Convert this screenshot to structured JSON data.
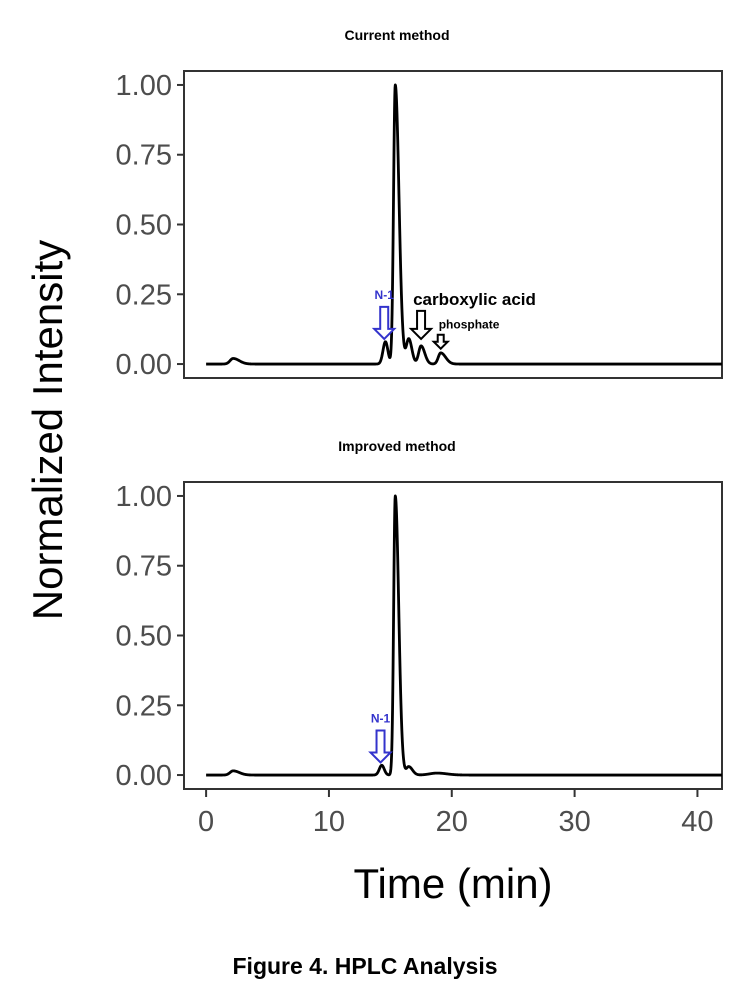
{
  "chart_data": [
    {
      "type": "line",
      "title": "Current method",
      "xlabel": "Time (min)",
      "ylabel": "Normalized Intensity",
      "xlim": [
        -1.8,
        42
      ],
      "ylim": [
        -0.05,
        1.05
      ],
      "yticks": [
        "0.00",
        "0.25",
        "0.50",
        "0.75",
        "1.00"
      ],
      "ytick_values": [
        0,
        0.25,
        0.5,
        0.75,
        1.0
      ],
      "x_range": [
        0,
        42
      ],
      "peaks": [
        {
          "t": 2.2,
          "h": 0.02,
          "wl": 0.25,
          "wr": 0.5
        },
        {
          "t": 14.6,
          "h": 0.08,
          "wl": 0.2,
          "wr": 0.2
        },
        {
          "t": 15.4,
          "h": 1.0,
          "wl": 0.14,
          "wr": 0.3
        },
        {
          "t": 16.5,
          "h": 0.09,
          "wl": 0.2,
          "wr": 0.25
        },
        {
          "t": 17.5,
          "h": 0.065,
          "wl": 0.2,
          "wr": 0.3
        },
        {
          "t": 19.1,
          "h": 0.04,
          "wl": 0.2,
          "wr": 0.4
        }
      ],
      "annotations": [
        {
          "text": "N-1",
          "t": 14.5,
          "y": 0.09,
          "color": "#3333cc",
          "size": "small"
        },
        {
          "text": "carboxylic acid",
          "t": 17.5,
          "y": 0.09,
          "color": "#000000",
          "size": "large"
        },
        {
          "text": "phosphate",
          "t": 19.1,
          "y": 0.055,
          "color": "#000000",
          "size": "small-arrow"
        }
      ]
    },
    {
      "type": "line",
      "title": "Improved method",
      "xlabel": "Time (min)",
      "ylabel": "Normalized Intensity",
      "xlim": [
        -1.8,
        42
      ],
      "ylim": [
        -0.05,
        1.05
      ],
      "yticks": [
        "0.00",
        "0.25",
        "0.50",
        "0.75",
        "1.00"
      ],
      "ytick_values": [
        0,
        0.25,
        0.5,
        0.75,
        1.0
      ],
      "xticks": [
        "0",
        "10",
        "20",
        "30",
        "40"
      ],
      "xtick_values": [
        0,
        10,
        20,
        30,
        40
      ],
      "x_range": [
        0,
        42
      ],
      "peaks": [
        {
          "t": 2.2,
          "h": 0.015,
          "wl": 0.25,
          "wr": 0.5
        },
        {
          "t": 14.3,
          "h": 0.035,
          "wl": 0.2,
          "wr": 0.2
        },
        {
          "t": 15.4,
          "h": 1.0,
          "wl": 0.13,
          "wr": 0.28
        },
        {
          "t": 16.5,
          "h": 0.03,
          "wl": 0.2,
          "wr": 0.3
        },
        {
          "t": 18.8,
          "h": 0.007,
          "wl": 0.6,
          "wr": 0.8
        }
      ],
      "annotations": [
        {
          "text": "N-1",
          "t": 14.2,
          "y": 0.045,
          "color": "#3333cc",
          "size": "small"
        }
      ]
    }
  ],
  "shared": {
    "ylabel": "Normalized Intensity",
    "xlabel": "Time (min)"
  },
  "caption": "Figure 4. HPLC Analysis"
}
